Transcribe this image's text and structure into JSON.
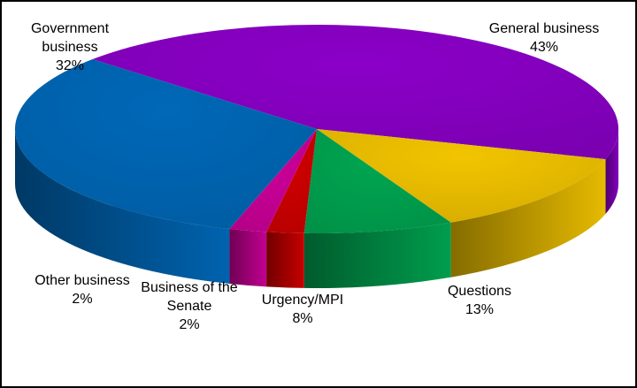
{
  "chart_data": {
    "type": "pie",
    "style": "3d",
    "slices": [
      {
        "label": "General business",
        "value": 43,
        "value_label": "43%",
        "color": "#8B00C8"
      },
      {
        "label": "Questions",
        "value": 13,
        "value_label": "13%",
        "color": "#F2C400"
      },
      {
        "label": "Urgency/MPI",
        "value": 8,
        "value_label": "8%",
        "color": "#00A651"
      },
      {
        "label": "Business of the Senate",
        "value": 2,
        "value_label": "2%",
        "color": "#D00000"
      },
      {
        "label": "Other business",
        "value": 2,
        "value_label": "2%",
        "color": "#CC0099"
      },
      {
        "label": "Government business",
        "value": 32,
        "value_label": "32%",
        "color": "#0068B8"
      }
    ],
    "legend": "none"
  }
}
